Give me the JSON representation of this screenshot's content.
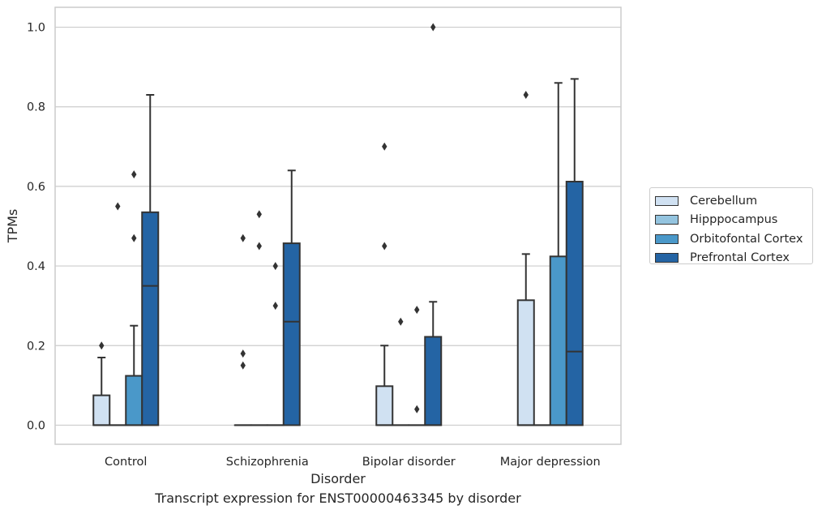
{
  "chart_data": {
    "type": "boxplot",
    "xlabel": "Disorder",
    "ylabel": "TPMs",
    "ylim": [
      -0.048,
      1.05
    ],
    "yticks": [
      0.0,
      0.2,
      0.4,
      0.6,
      0.8,
      1.0
    ],
    "ytick_labels": [
      "0.0",
      "0.2",
      "0.4",
      "0.6",
      "0.8",
      "1.0"
    ],
    "grid": true,
    "legend_placement": "outside-right",
    "categories": [
      "Control",
      "Schizophrenia",
      "Bipolar disorder",
      "Major depression"
    ],
    "series": [
      {
        "name": "Cerebellum",
        "color": "#d0e1f2",
        "boxes": [
          {
            "q1": 0.0,
            "median": 0.0,
            "q3": 0.075,
            "whislo": 0.0,
            "whishi": 0.17,
            "fliers": [
              0.2
            ]
          },
          {
            "q1": 0.0,
            "median": 0.0,
            "q3": 0.0,
            "whislo": 0.0,
            "whishi": 0.0,
            "fliers": [
              0.47,
              0.18,
              0.15
            ]
          },
          {
            "q1": 0.0,
            "median": 0.0,
            "q3": 0.098,
            "whislo": 0.0,
            "whishi": 0.2,
            "fliers": [
              0.7,
              0.45
            ]
          },
          {
            "q1": 0.0,
            "median": 0.0,
            "q3": 0.314,
            "whislo": 0.0,
            "whishi": 0.43,
            "fliers": [
              0.83
            ]
          }
        ]
      },
      {
        "name": "Hipppocampus",
        "color": "#94c4df",
        "boxes": [
          {
            "q1": 0.0,
            "median": 0.0,
            "q3": 0.0,
            "whislo": 0.0,
            "whishi": 0.0,
            "fliers": [
              0.55
            ]
          },
          {
            "q1": 0.0,
            "median": 0.0,
            "q3": 0.0,
            "whislo": 0.0,
            "whishi": 0.0,
            "fliers": [
              0.53,
              0.45
            ]
          },
          {
            "q1": 0.0,
            "median": 0.0,
            "q3": 0.0,
            "whislo": 0.0,
            "whishi": 0.0,
            "fliers": [
              0.26
            ]
          },
          {
            "q1": 0.0,
            "median": 0.0,
            "q3": 0.0,
            "whislo": 0.0,
            "whishi": 0.0,
            "fliers": []
          }
        ]
      },
      {
        "name": "Orbitofontal Cortex",
        "color": "#4a98c9",
        "boxes": [
          {
            "q1": 0.0,
            "median": 0.0,
            "q3": 0.124,
            "whislo": 0.0,
            "whishi": 0.25,
            "fliers": [
              0.63,
              0.47
            ]
          },
          {
            "q1": 0.0,
            "median": 0.0,
            "q3": 0.0,
            "whislo": 0.0,
            "whishi": 0.0,
            "fliers": [
              0.4,
              0.3
            ]
          },
          {
            "q1": 0.0,
            "median": 0.0,
            "q3": 0.0,
            "whislo": 0.0,
            "whishi": 0.0,
            "fliers": [
              0.29,
              0.04
            ]
          },
          {
            "q1": 0.0,
            "median": 0.0,
            "q3": 0.424,
            "whislo": 0.0,
            "whishi": 0.86,
            "fliers": []
          }
        ]
      },
      {
        "name": "Prefrontal Cortex",
        "color": "#2464a4",
        "boxes": [
          {
            "q1": 0.0,
            "median": 0.35,
            "q3": 0.535,
            "whislo": 0.0,
            "whishi": 0.83,
            "fliers": []
          },
          {
            "q1": 0.0,
            "median": 0.26,
            "q3": 0.457,
            "whislo": 0.0,
            "whishi": 0.64,
            "fliers": []
          },
          {
            "q1": 0.0,
            "median": 0.0,
            "q3": 0.222,
            "whislo": 0.0,
            "whishi": 0.31,
            "fliers": [
              1.0
            ]
          },
          {
            "q1": 0.0,
            "median": 0.185,
            "q3": 0.612,
            "whislo": 0.0,
            "whishi": 0.87,
            "fliers": []
          }
        ]
      }
    ]
  },
  "caption": "Transcript expression for ENST00000463345 by disorder"
}
